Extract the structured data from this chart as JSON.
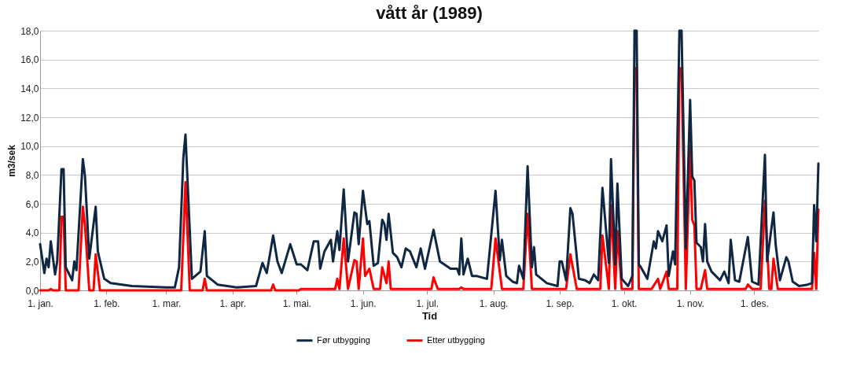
{
  "chart_data": {
    "type": "line",
    "title": "vått år (1989)",
    "xlabel": "Tid",
    "ylabel": "m3/sek",
    "legend": "bottom",
    "grid": "y",
    "marker": "none",
    "line_style": "solid",
    "xlim": [
      "1989-01-01",
      "1989-12-31"
    ],
    "xticks": [
      {
        "value": "1989-01-01",
        "label": "1. jan."
      },
      {
        "value": "1989-02-01",
        "label": "1. feb."
      },
      {
        "value": "1989-03-01",
        "label": "1. mar."
      },
      {
        "value": "1989-04-01",
        "label": "1. apr."
      },
      {
        "value": "1989-05-01",
        "label": "1. mai."
      },
      {
        "value": "1989-06-01",
        "label": "1. jun."
      },
      {
        "value": "1989-07-01",
        "label": "1. jul."
      },
      {
        "value": "1989-08-01",
        "label": "1. aug."
      },
      {
        "value": "1989-09-01",
        "label": "1. sep."
      },
      {
        "value": "1989-10-01",
        "label": "1. okt."
      },
      {
        "value": "1989-11-01",
        "label": "1. nov."
      },
      {
        "value": "1989-12-01",
        "label": "1. des."
      }
    ],
    "ylim": [
      0,
      18
    ],
    "yticks": [
      {
        "value": 0,
        "label": "0,0"
      },
      {
        "value": 2,
        "label": "2,0"
      },
      {
        "value": 4,
        "label": "4,0"
      },
      {
        "value": 6,
        "label": "6,0"
      },
      {
        "value": 8,
        "label": "8,0"
      },
      {
        "value": 10,
        "label": "10,0"
      },
      {
        "value": 12,
        "label": "12,0"
      },
      {
        "value": 14,
        "label": "14,0"
      },
      {
        "value": 16,
        "label": "16,0"
      },
      {
        "value": 18,
        "label": "18,0"
      }
    ],
    "series": [
      {
        "name": "Før utbygging",
        "color": "#0f2742",
        "x": [
          "1989-01-01",
          "1989-01-03",
          "1989-01-04",
          "1989-01-05",
          "1989-01-06",
          "1989-01-08",
          "1989-01-09",
          "1989-01-11",
          "1989-01-12",
          "1989-01-13",
          "1989-01-16",
          "1989-01-17",
          "1989-01-18",
          "1989-01-21",
          "1989-01-22",
          "1989-01-24",
          "1989-01-27",
          "1989-01-28",
          "1989-01-31",
          "1989-02-03",
          "1989-02-13",
          "1989-03-01",
          "1989-03-05",
          "1989-03-07",
          "1989-03-09",
          "1989-03-10",
          "1989-03-13",
          "1989-03-17",
          "1989-03-19",
          "1989-03-20",
          "1989-03-25",
          "1989-04-03",
          "1989-04-12",
          "1989-04-15",
          "1989-04-17",
          "1989-04-20",
          "1989-04-22",
          "1989-04-24",
          "1989-04-28",
          "1989-05-01",
          "1989-05-03",
          "1989-05-06",
          "1989-05-09",
          "1989-05-11",
          "1989-05-12",
          "1989-05-14",
          "1989-05-17",
          "1989-05-18",
          "1989-05-20",
          "1989-05-21",
          "1989-05-23",
          "1989-05-25",
          "1989-05-28",
          "1989-05-29",
          "1989-05-30",
          "1989-06-01",
          "1989-06-03",
          "1989-06-04",
          "1989-06-06",
          "1989-06-08",
          "1989-06-10",
          "1989-06-11",
          "1989-06-12",
          "1989-06-13",
          "1989-06-15",
          "1989-06-17",
          "1989-06-19",
          "1989-06-21",
          "1989-06-23",
          "1989-06-26",
          "1989-06-28",
          "1989-06-30",
          "1989-07-04",
          "1989-07-07",
          "1989-07-12",
          "1989-07-15",
          "1989-07-16",
          "1989-07-17",
          "1989-07-18",
          "1989-07-20",
          "1989-07-22",
          "1989-07-24",
          "1989-07-29",
          "1989-08-02",
          "1989-08-04",
          "1989-08-05",
          "1989-08-07",
          "1989-08-10",
          "1989-08-12",
          "1989-08-13",
          "1989-08-15",
          "1989-08-17",
          "1989-08-19",
          "1989-08-20",
          "1989-08-21",
          "1989-08-26",
          "1989-08-31",
          "1989-09-01",
          "1989-09-02",
          "1989-09-04",
          "1989-09-06",
          "1989-09-07",
          "1989-09-10",
          "1989-09-13",
          "1989-09-15",
          "1989-09-17",
          "1989-09-19",
          "1989-09-21",
          "1989-09-24",
          "1989-09-25",
          "1989-09-27",
          "1989-09-28",
          "1989-09-30",
          "1989-10-03",
          "1989-10-05",
          "1989-10-06",
          "1989-10-07",
          "1989-10-08",
          "1989-10-09",
          "1989-10-12",
          "1989-10-15",
          "1989-10-16",
          "1989-10-17",
          "1989-10-19",
          "1989-10-21",
          "1989-10-22",
          "1989-10-24",
          "1989-10-25",
          "1989-10-27",
          "1989-10-28",
          "1989-10-30",
          "1989-11-01",
          "1989-11-02",
          "1989-11-03",
          "1989-11-04",
          "1989-11-06",
          "1989-11-07",
          "1989-11-08",
          "1989-11-09",
          "1989-11-11",
          "1989-11-15",
          "1989-11-17",
          "1989-11-19",
          "1989-11-20",
          "1989-11-22",
          "1989-11-24",
          "1989-11-28",
          "1989-11-30",
          "1989-12-03",
          "1989-12-06",
          "1989-12-07",
          "1989-12-10",
          "1989-12-11",
          "1989-12-13",
          "1989-12-16",
          "1989-12-17",
          "1989-12-19",
          "1989-12-22",
          "1989-12-26",
          "1989-12-28",
          "1989-12-29",
          "1989-12-30",
          "1989-12-31"
        ],
        "values": [
          3.2,
          1.2,
          2.2,
          1.6,
          3.4,
          1.1,
          2.0,
          8.4,
          8.4,
          1.6,
          0.7,
          2.0,
          1.4,
          9.1,
          7.9,
          2.2,
          5.8,
          2.7,
          0.8,
          0.5,
          0.3,
          0.2,
          0.2,
          1.6,
          9.2,
          10.8,
          0.8,
          1.3,
          4.1,
          1.0,
          0.4,
          0.2,
          0.3,
          1.9,
          1.2,
          3.8,
          2.0,
          1.2,
          3.2,
          1.8,
          1.8,
          1.4,
          3.4,
          3.4,
          1.5,
          2.7,
          3.5,
          2.0,
          4.1,
          2.8,
          7.0,
          2.0,
          5.4,
          5.3,
          3.2,
          6.9,
          4.6,
          4.8,
          1.7,
          1.9,
          4.9,
          4.6,
          3.5,
          5.3,
          2.6,
          2.3,
          1.6,
          2.9,
          2.7,
          1.6,
          2.9,
          1.5,
          4.2,
          2.0,
          1.5,
          1.5,
          1.1,
          3.6,
          1.1,
          2.2,
          1.0,
          1.0,
          0.8,
          6.9,
          2.1,
          3.5,
          1.0,
          0.6,
          0.5,
          1.7,
          0.8,
          8.6,
          1.6,
          3.0,
          1.1,
          0.5,
          0.3,
          2.0,
          2.0,
          0.7,
          5.7,
          5.3,
          0.8,
          0.7,
          0.5,
          1.1,
          0.7,
          7.1,
          1.9,
          9.1,
          1.8,
          7.4,
          0.8,
          0.3,
          1.0,
          18.0,
          18.0,
          1.8,
          1.6,
          0.8,
          3.4,
          2.9,
          4.1,
          3.4,
          4.5,
          1.0,
          2.7,
          1.8,
          18.0,
          18.0,
          2.9,
          13.2,
          7.9,
          7.6,
          3.3,
          3.0,
          2.0,
          4.6,
          2.0,
          1.3,
          0.7,
          1.3,
          0.5,
          3.5,
          0.7,
          0.6,
          3.7,
          0.6,
          0.4,
          9.4,
          2.0,
          5.4,
          3.2,
          0.7,
          2.3,
          2.0,
          0.6,
          0.3,
          0.4,
          0.5,
          5.9,
          3.4,
          8.8
        ]
      },
      {
        "name": "Etter utbygging",
        "color": "#ff0000",
        "x": [
          "1989-01-01",
          "1989-01-05",
          "1989-01-06",
          "1989-01-07",
          "1989-01-10",
          "1989-01-11",
          "1989-01-12",
          "1989-01-13",
          "1989-01-19",
          "1989-01-21",
          "1989-01-22",
          "1989-01-24",
          "1989-01-26",
          "1989-01-27",
          "1989-01-29",
          "1989-03-08",
          "1989-03-10",
          "1989-03-12",
          "1989-03-18",
          "1989-03-19",
          "1989-03-20",
          "1989-04-19",
          "1989-04-20",
          "1989-04-21",
          "1989-05-02",
          "1989-05-03",
          "1989-05-19",
          "1989-05-20",
          "1989-05-21",
          "1989-05-23",
          "1989-05-25",
          "1989-05-28",
          "1989-05-29",
          "1989-05-30",
          "1989-06-01",
          "1989-06-02",
          "1989-06-04",
          "1989-06-06",
          "1989-06-09",
          "1989-06-10",
          "1989-06-12",
          "1989-06-13",
          "1989-06-14",
          "1989-07-03",
          "1989-07-04",
          "1989-07-06",
          "1989-07-16",
          "1989-07-17",
          "1989-07-18",
          "1989-07-31",
          "1989-08-02",
          "1989-08-05",
          "1989-08-15",
          "1989-08-17",
          "1989-08-19",
          "1989-09-04",
          "1989-09-06",
          "1989-09-09",
          "1989-09-20",
          "1989-09-21",
          "1989-09-24",
          "1989-09-25",
          "1989-09-27",
          "1989-09-28",
          "1989-09-30",
          "1989-10-05",
          "1989-10-06",
          "1989-10-07",
          "1989-10-08",
          "1989-10-14",
          "1989-10-17",
          "1989-10-18",
          "1989-10-21",
          "1989-10-22",
          "1989-10-26",
          "1989-10-27",
          "1989-10-28",
          "1989-10-30",
          "1989-11-01",
          "1989-11-02",
          "1989-11-03",
          "1989-11-04",
          "1989-11-06",
          "1989-11-08",
          "1989-11-09",
          "1989-11-27",
          "1989-11-28",
          "1989-11-30",
          "1989-12-04",
          "1989-12-06",
          "1989-12-08",
          "1989-12-09",
          "1989-12-10",
          "1989-12-12",
          "1989-12-28",
          "1989-12-29",
          "1989-12-30",
          "1989-12-31"
        ],
        "values": [
          0,
          0,
          0.1,
          0,
          0,
          5.1,
          5.1,
          0,
          0,
          5.8,
          4.5,
          0,
          0,
          2.5,
          0,
          0,
          7.5,
          0,
          0,
          0.8,
          0,
          0,
          0.4,
          0,
          0,
          0.1,
          0.1,
          0.8,
          0.1,
          3.6,
          0.1,
          2.1,
          2.0,
          0.1,
          3.6,
          1.0,
          1.5,
          0.1,
          0.1,
          1.6,
          0.5,
          2.0,
          0.1,
          0.1,
          0.9,
          0.1,
          0.1,
          0.2,
          0.1,
          0.1,
          3.6,
          0.1,
          0.1,
          5.3,
          0.1,
          0.1,
          2.5,
          0.1,
          0.1,
          3.8,
          0.1,
          5.9,
          0.1,
          4.1,
          0.1,
          0.1,
          15.4,
          15.4,
          0.1,
          0.1,
          0.8,
          0.1,
          1.3,
          0.1,
          0.1,
          15.4,
          15.4,
          0.1,
          10.0,
          4.9,
          4.5,
          0.1,
          0.1,
          1.4,
          0.1,
          0.1,
          0.4,
          0.1,
          0.1,
          6.2,
          0.1,
          0.1,
          2.2,
          0.1,
          0.1,
          2.6,
          0.1,
          5.6
        ]
      }
    ]
  }
}
